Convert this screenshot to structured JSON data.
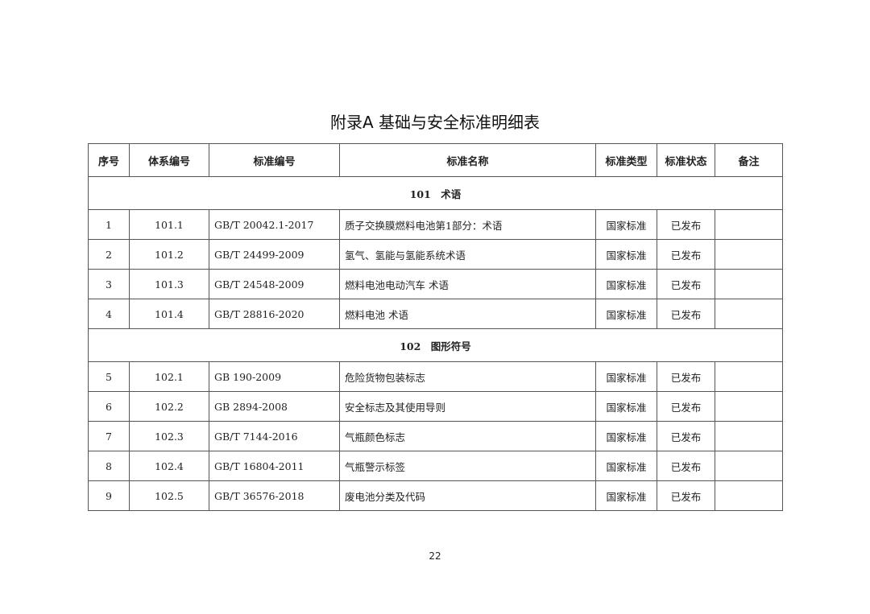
{
  "title": "附录A 基础与安全标准明细表",
  "headers": [
    "序号",
    "体系编号",
    "标准编号",
    "标准名称",
    "标准类型",
    "标准状态",
    "备注"
  ],
  "sections": [
    {
      "label": "101　术语",
      "rows": [
        [
          "1",
          "101.1",
          "GB/T 20042.1-2017",
          "质子交换膜燃料电池第1部分：术语",
          "国家标准",
          "已发布",
          ""
        ],
        [
          "2",
          "101.2",
          "GB/T 24499-2009",
          "氢气、氢能与氢能系统术语",
          "国家标准",
          "已发布",
          ""
        ],
        [
          "3",
          "101.3",
          "GB/T 24548-2009",
          "燃料电池电动汽车 术语",
          "国家标准",
          "已发布",
          ""
        ],
        [
          "4",
          "101.4",
          "GB/T 28816-2020",
          "燃料电池 术语",
          "国家标准",
          "已发布",
          ""
        ]
      ]
    },
    {
      "label": "102　图形符号",
      "rows": [
        [
          "5",
          "102.1",
          "GB 190-2009",
          "危险货物包装标志",
          "国家标准",
          "已发布",
          ""
        ],
        [
          "6",
          "102.2",
          "GB 2894-2008",
          "安全标志及其使用导则",
          "国家标准",
          "已发布",
          ""
        ],
        [
          "7",
          "102.3",
          "GB/T 7144-2016",
          "气瓶颜色标志",
          "国家标准",
          "已发布",
          ""
        ],
        [
          "8",
          "102.4",
          "GB/T 16804-2011",
          "气瓶警示标签",
          "国家标准",
          "已发布",
          ""
        ],
        [
          "9",
          "102.5",
          "GB/T 36576-2018",
          "废电池分类及代码",
          "国家标准",
          "已发布",
          ""
        ]
      ]
    }
  ],
  "page_number": "22"
}
